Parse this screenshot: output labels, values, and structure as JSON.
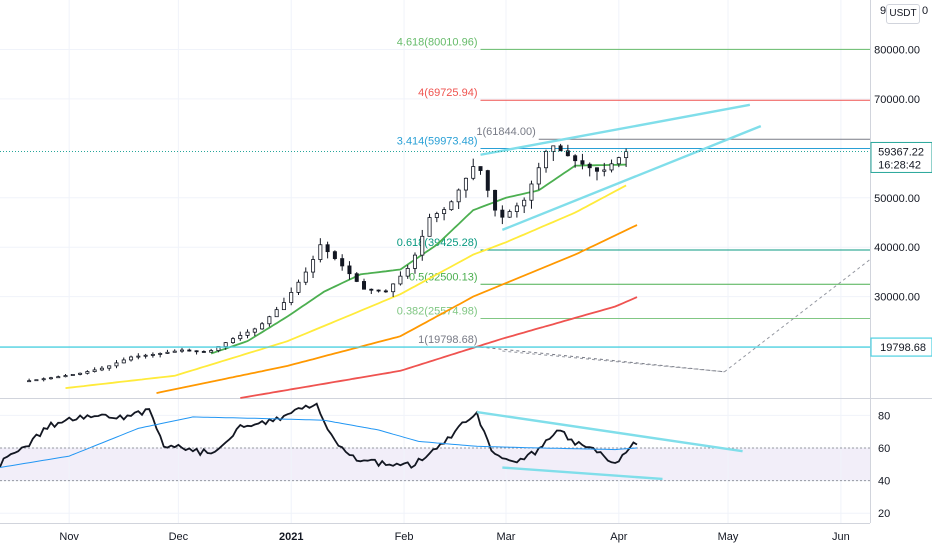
{
  "currency_label": "USDT",
  "chart_data": {
    "type": "candlestick",
    "price_axis": {
      "ticks": [
        {
          "value": 80000,
          "label": "80000.00"
        },
        {
          "value": 70000,
          "label": "70000.00"
        },
        {
          "value": 50000,
          "label": "50000.00"
        },
        {
          "value": 40000,
          "label": "40000.00"
        },
        {
          "value": 30000,
          "label": "30000.00"
        }
      ],
      "top_cut_label": "9",
      "top_cut_label_right": "0",
      "range": [
        9500,
        90000
      ]
    },
    "last_price": {
      "value": 59367.22,
      "label": "59367.22",
      "countdown": "16:28:42",
      "color": "#26a69a"
    },
    "horizontal_line": {
      "value": 19798.68,
      "label": "19798.68",
      "color": "#4dd0e1"
    },
    "time_axis": {
      "labels": [
        {
          "date": "2020-11-01",
          "label": "Nov"
        },
        {
          "date": "2020-12-01",
          "label": "Dec"
        },
        {
          "date": "2021-01-01",
          "label": "2021"
        },
        {
          "date": "2021-02-01",
          "label": "Feb"
        },
        {
          "date": "2021-03-01",
          "label": "Mar"
        },
        {
          "date": "2021-04-01",
          "label": "Apr"
        },
        {
          "date": "2021-05-01",
          "label": "May"
        },
        {
          "date": "2021-06-01",
          "label": "Jun"
        }
      ],
      "range": [
        "2020-10-13",
        "2021-06-09"
      ]
    },
    "fib_levels": [
      {
        "label": "4.618(80010.96)",
        "value": 80010.96,
        "color": "#66bb6a"
      },
      {
        "label": "4(69725.94)",
        "value": 69725.94,
        "color": "#ef5350"
      },
      {
        "label": "3.414(59973.48)",
        "value": 59973.48,
        "color": "#29a0d6"
      },
      {
        "label": "1(61844.00)",
        "value": 61844.0,
        "color": "#787b86"
      },
      {
        "label": "0.618(39425.28)",
        "value": 39425.28,
        "color": "#089981"
      },
      {
        "label": "0.5(32500.13)",
        "value": 32500.13,
        "color": "#4caf50"
      },
      {
        "label": "0.382(25574.98)",
        "value": 25574.98,
        "color": "#81c784"
      },
      {
        "label": "1(19798.68)",
        "value": 19798.68,
        "color": "#787b86"
      }
    ],
    "series": [
      {
        "name": "",
        "kind": "close",
        "color": "#131722",
        "dates": [
          "2020-10-21",
          "2020-10-28",
          "2020-11-04",
          "2020-11-11",
          "2020-11-18",
          "2020-11-25",
          "2020-12-02",
          "2020-12-09",
          "2020-12-16",
          "2020-12-23",
          "2020-12-30",
          "2021-01-06",
          "2021-01-09",
          "2021-01-14",
          "2021-01-21",
          "2021-01-27",
          "2021-02-03",
          "2021-02-08",
          "2021-02-13",
          "2021-02-21",
          "2021-02-27",
          "2021-03-06",
          "2021-03-13",
          "2021-03-20",
          "2021-03-27",
          "2021-04-03"
        ],
        "values": [
          13000,
          13700,
          14500,
          15700,
          17800,
          18400,
          19200,
          18700,
          21500,
          23800,
          28800,
          36000,
          40500,
          37000,
          31500,
          31000,
          36500,
          46000,
          48000,
          57500,
          45500,
          49500,
          61000,
          57500,
          55000,
          59367
        ]
      },
      {
        "name": "",
        "kind": "ma",
        "color": "#4caf50",
        "dates": [
          "2020-12-10",
          "2020-12-20",
          "2020-12-31",
          "2021-01-10",
          "2021-01-20",
          "2021-01-31",
          "2021-02-10",
          "2021-02-20",
          "2021-03-01",
          "2021-03-10",
          "2021-03-20",
          "2021-04-03"
        ],
        "values": [
          18500,
          21000,
          26000,
          31000,
          34500,
          35500,
          40500,
          47500,
          50000,
          51500,
          56500,
          56700
        ]
      },
      {
        "name": "",
        "kind": "ma",
        "color": "#ffeb3b",
        "dates": [
          "2020-10-31",
          "2020-11-30",
          "2020-12-31",
          "2021-01-31",
          "2021-02-20",
          "2021-03-01",
          "2021-03-20",
          "2021-04-03"
        ],
        "values": [
          11500,
          14000,
          21000,
          30500,
          38500,
          41000,
          47000,
          52500
        ]
      },
      {
        "name": "",
        "kind": "ma",
        "color": "#ff9800",
        "dates": [
          "2020-11-25",
          "2020-12-31",
          "2021-01-31",
          "2021-02-20",
          "2021-03-20",
          "2021-04-06"
        ],
        "values": [
          10500,
          16000,
          22000,
          30000,
          38500,
          44500
        ]
      },
      {
        "name": "",
        "kind": "ma",
        "color": "#ef5350",
        "dates": [
          "2020-12-18",
          "2021-01-31",
          "2021-02-28",
          "2021-03-31",
          "2021-04-06"
        ],
        "values": [
          9500,
          15000,
          21500,
          28000,
          29900
        ]
      }
    ],
    "channel_lines": [
      {
        "from": [
          "2021-02-22",
          58700
        ],
        "to": [
          "2021-05-07",
          68800
        ],
        "color": "#80deea"
      },
      {
        "from": [
          "2021-02-28",
          43500
        ],
        "to": [
          "2021-05-10",
          64500
        ],
        "color": "#80deea"
      }
    ],
    "projection_lines": [
      {
        "from": [
          "2021-02-28",
          19000
        ],
        "to": [
          "2021-04-30",
          14800
        ],
        "color": "#9598a1"
      },
      {
        "from": [
          "2021-04-30",
          14800
        ],
        "to": [
          "2021-06-09",
          37500
        ],
        "color": "#9598a1"
      }
    ],
    "rsi": {
      "ticks": [
        {
          "value": 80,
          "label": "80"
        },
        {
          "value": 60,
          "label": "60"
        },
        {
          "value": 40,
          "label": "40"
        },
        {
          "value": 20,
          "label": "20"
        }
      ],
      "range": [
        14,
        90
      ],
      "band": [
        40,
        60
      ],
      "dates": [
        "2020-10-13",
        "2020-10-20",
        "2020-10-27",
        "2020-11-02",
        "2020-11-09",
        "2020-11-16",
        "2020-11-23",
        "2020-11-27",
        "2020-12-04",
        "2020-12-11",
        "2020-12-18",
        "2020-12-25",
        "2021-01-02",
        "2021-01-08",
        "2021-01-13",
        "2021-01-20",
        "2021-01-27",
        "2021-02-03",
        "2021-02-10",
        "2021-02-17",
        "2021-02-21",
        "2021-02-25",
        "2021-03-03",
        "2021-03-10",
        "2021-03-15",
        "2021-03-20",
        "2021-03-25",
        "2021-03-31",
        "2021-04-06"
      ],
      "values": [
        50,
        61,
        74,
        78,
        80,
        78,
        84,
        62,
        59,
        56,
        74,
        76,
        82,
        86,
        64,
        52,
        50,
        49,
        59,
        74,
        80,
        57,
        50,
        59,
        72,
        62,
        61,
        50,
        64
      ],
      "ma_dates": [
        "2020-10-13",
        "2020-11-01",
        "2020-11-20",
        "2020-12-05",
        "2020-12-25",
        "2021-01-10",
        "2021-01-25",
        "2021-02-05",
        "2021-02-21",
        "2021-03-10",
        "2021-03-31",
        "2021-04-06"
      ],
      "ma_values": [
        48,
        55,
        72,
        79,
        78,
        77,
        71,
        64,
        61,
        60,
        59,
        60
      ],
      "trend_lines": [
        {
          "from": [
            "2021-02-21",
            82
          ],
          "to": [
            "2021-05-05",
            58
          ],
          "color": "#80deea"
        },
        {
          "from": [
            "2021-02-28",
            48
          ],
          "to": [
            "2021-04-13",
            41
          ],
          "color": "#80deea"
        }
      ]
    }
  }
}
